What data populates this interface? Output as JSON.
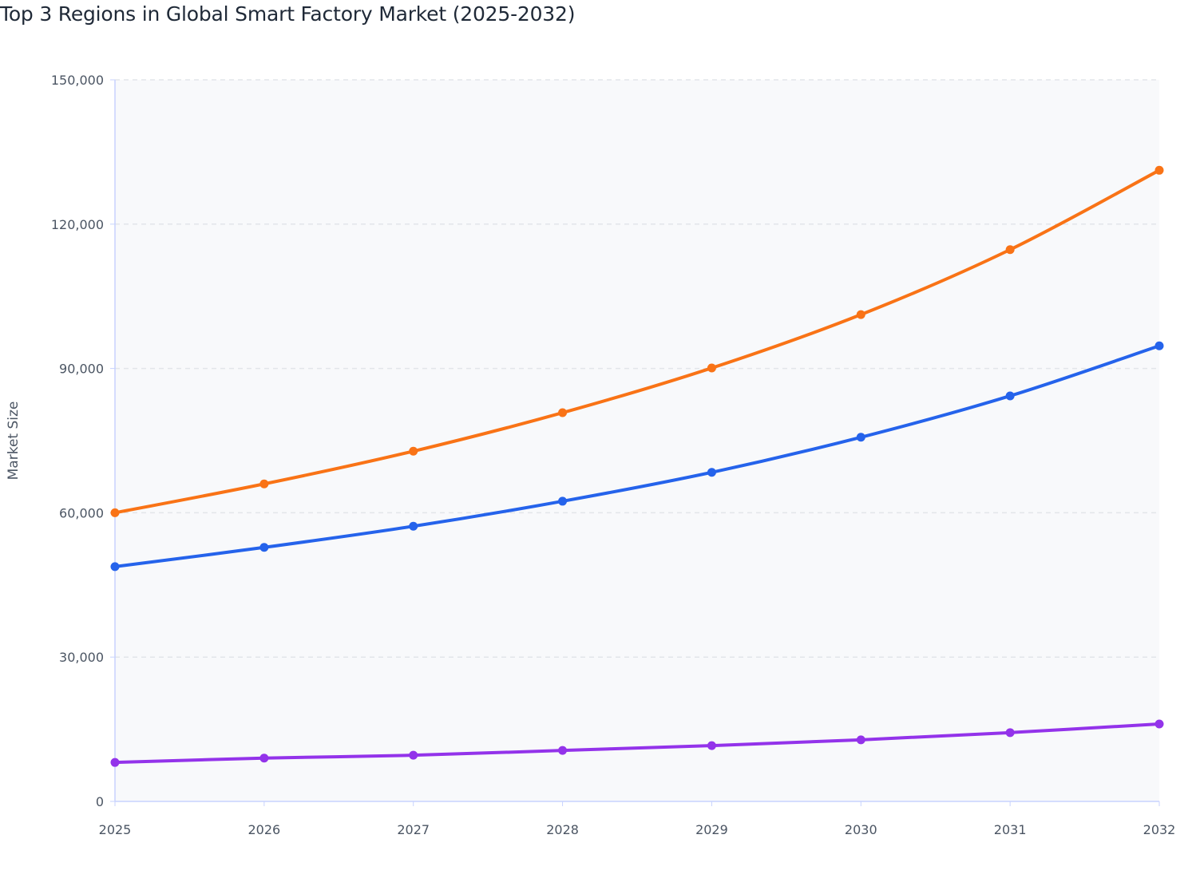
{
  "chart_data": {
    "type": "line",
    "title": "Top 3 Regions in Global Smart Factory Market (2025-2032)",
    "xlabel": "",
    "ylabel": "Market Size",
    "x": [
      "2025",
      "2026",
      "2027",
      "2028",
      "2029",
      "2030",
      "2031",
      "2032"
    ],
    "ylim": [
      0,
      150000
    ],
    "yticks": [
      0,
      30000,
      60000,
      90000,
      120000,
      150000
    ],
    "ytick_labels": [
      "0",
      "30,000",
      "60,000",
      "90,000",
      "120,000",
      "150,000"
    ],
    "grid": true,
    "legend": "none",
    "series": [
      {
        "color": "#f97316",
        "values": [
          60000,
          66000,
          72800,
          80800,
          90100,
          101200,
          114700,
          131200
        ]
      },
      {
        "color": "#2563eb",
        "values": [
          48800,
          52800,
          57200,
          62400,
          68400,
          75700,
          84300,
          94700
        ]
      },
      {
        "color": "#9333ea",
        "values": [
          8100,
          9000,
          9600,
          10600,
          11600,
          12800,
          14300,
          16100
        ]
      }
    ]
  }
}
